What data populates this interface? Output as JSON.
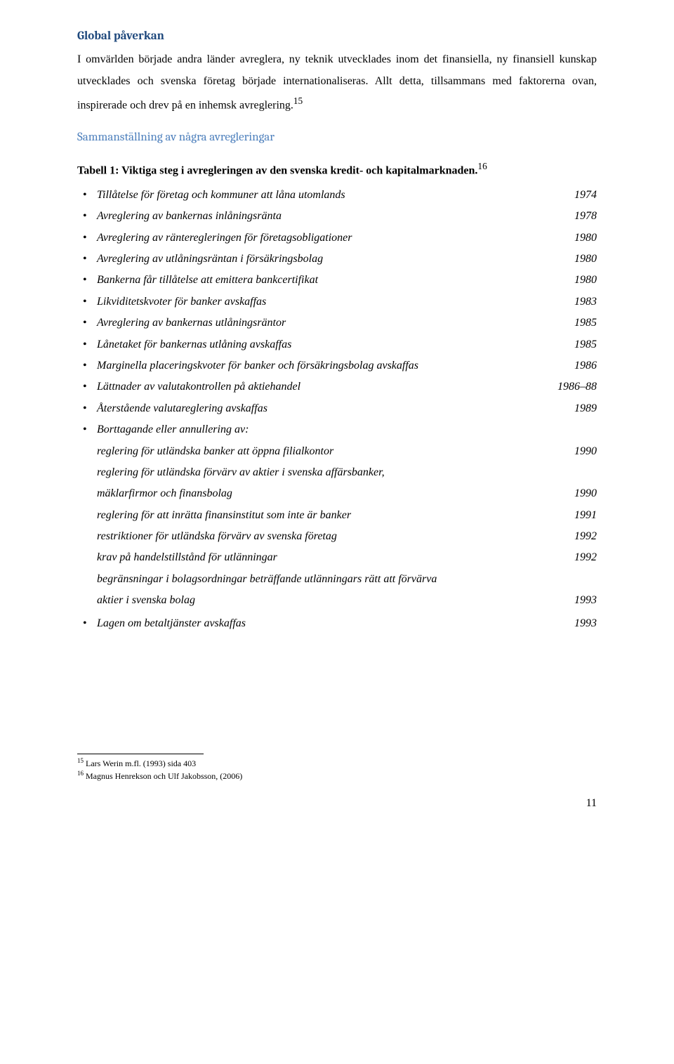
{
  "heading1": "Global påverkan",
  "paragraph": "I omvärlden började andra länder avreglera, ny teknik utvecklades inom det finansiella, ny finansiell kunskap utvecklades och svenska företag började internationaliseras. Allt detta, tillsammans med faktorerna ovan, inspirerade och drev på en inhemsk avreglering.",
  "footref15": "15",
  "heading2": "Sammanställning av några avregleringar",
  "tableTitlePrefix": "Tabell 1: Viktiga steg i avregleringen av den svenska kredit- och kapitalmarknaden.",
  "footref16": "16",
  "bullets": [
    {
      "label": "Tillåtelse för företag och kommuner att låna utomlands",
      "year": "1974"
    },
    {
      "label": "Avreglering av bankernas inlåningsränta",
      "year": "1978"
    },
    {
      "label": "Avreglering av ränteregleringen för företagsobligationer",
      "year": "1980"
    },
    {
      "label": "Avreglering av utlåningsräntan i försäkringsbolag",
      "year": "1980"
    },
    {
      "label": "Bankerna får tillåtelse att emittera bankcertifikat",
      "year": "1980"
    },
    {
      "label": "Likviditetskvoter för banker avskaffas",
      "year": "1983"
    },
    {
      "label": "Avreglering av bankernas utlåningsräntor",
      "year": "1985"
    },
    {
      "label": "Lånetaket för bankernas utlåning avskaffas",
      "year": "1985"
    },
    {
      "label": "Marginella placeringskvoter för banker och försäkringsbolag avskaffas",
      "year": "1986"
    },
    {
      "label": "Lättnader av valutakontrollen på aktiehandel",
      "year": "1986–88"
    },
    {
      "label": "Återstående valutareglering avskaffas",
      "year": "1989"
    }
  ],
  "bulletGroupHead": "Borttagande eller annullering av:",
  "subLines": [
    {
      "label": "reglering för utländska banker att öppna filialkontor",
      "year": "1990"
    },
    {
      "label": "reglering för utländska förvärv av aktier i svenska affärsbanker,",
      "year": ""
    },
    {
      "label": "mäklarfirmor och finansbolag",
      "year": "1990"
    },
    {
      "label": "reglering för att inrätta finansinstitut som inte är banker",
      "year": "1991"
    },
    {
      "label": "restriktioner för utländska förvärv av svenska företag",
      "year": "1992"
    },
    {
      "label": "krav på handelstillstånd för utlänningar",
      "year": "1992"
    },
    {
      "label": "begränsningar i bolagsordningar beträffande utlänningars rätt att förvärva",
      "year": ""
    },
    {
      "label": "aktier i svenska bolag",
      "year": "1993"
    }
  ],
  "lastBullet": {
    "label": "Lagen om betaltjänster avskaffas",
    "year": "1993"
  },
  "footnotes": [
    {
      "num": "15",
      "text": " Lars Werin m.fl. (1993) sida 403"
    },
    {
      "num": "16",
      "text": " Magnus Henrekson och Ulf Jakobsson, (2006)"
    }
  ],
  "pageNumber": "11"
}
